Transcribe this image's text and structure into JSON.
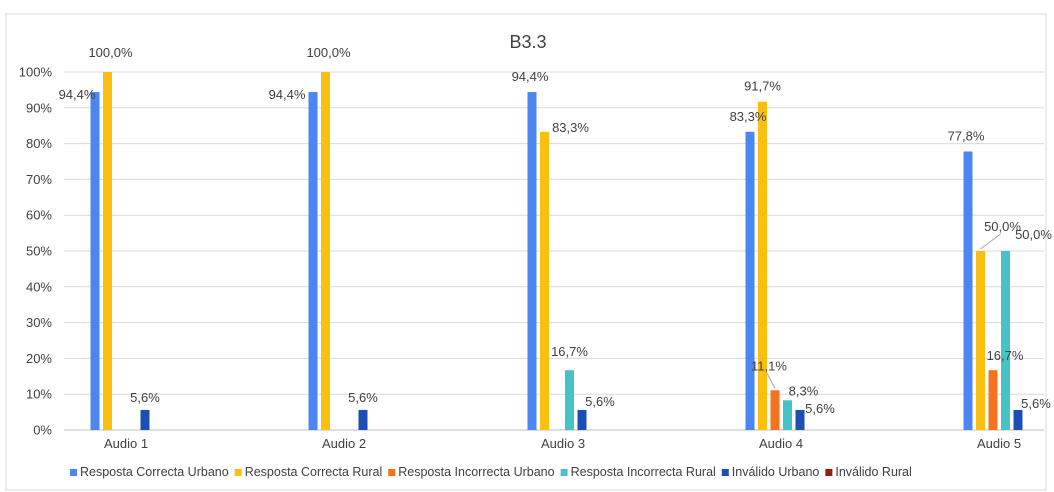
{
  "chart_data": {
    "type": "bar",
    "title": "B3.3",
    "categories": [
      "Audio 1",
      "Audio 2",
      "Audio 3",
      "Audio 4",
      "Audio 5"
    ],
    "ylim": [
      0,
      100
    ],
    "yticks": [
      "0%",
      "10%",
      "20%",
      "30%",
      "40%",
      "50%",
      "60%",
      "70%",
      "80%",
      "90%",
      "100%"
    ],
    "grid": true,
    "legend_position": "bottom",
    "series": [
      {
        "name": "Resposta Correcta Urbano",
        "color": "#4c86f0",
        "values": [
          94.4,
          94.4,
          94.4,
          83.3,
          77.8
        ],
        "labels": [
          "94,4%",
          "94,4%",
          "94,4%",
          "83,3%",
          "77,8%"
        ]
      },
      {
        "name": "Resposta Correcta Rural",
        "color": "#fbbf10",
        "values": [
          100,
          100,
          83.3,
          91.7,
          50
        ],
        "labels": [
          "100,0%",
          "100,0%",
          "83,3%",
          "91,7%",
          "50,0%"
        ]
      },
      {
        "name": "Resposta Incorrecta Urbano",
        "color": "#f5731e",
        "values": [
          0,
          0,
          0,
          11.1,
          16.7
        ],
        "labels": [
          "",
          "",
          "",
          "11,1%",
          "16,7%"
        ]
      },
      {
        "name": "Resposta Incorrecta Rural",
        "color": "#46c3c6",
        "values": [
          0,
          0,
          16.7,
          8.3,
          50
        ],
        "labels": [
          "",
          "",
          "16,7%",
          "8,3%",
          "50,0%"
        ]
      },
      {
        "name": "Inválido Urbano",
        "color": "#1b4fb3",
        "values": [
          5.6,
          5.6,
          5.6,
          5.6,
          5.6
        ],
        "labels": [
          "5,6%",
          "5,6%",
          "5,6%",
          "5,6%",
          "5,6%"
        ]
      },
      {
        "name": "Inválido Rural",
        "color": "#9b1b0e",
        "values": [
          0,
          0,
          0,
          0,
          0
        ],
        "labels": [
          "",
          "",
          "",
          "",
          ""
        ]
      }
    ]
  }
}
